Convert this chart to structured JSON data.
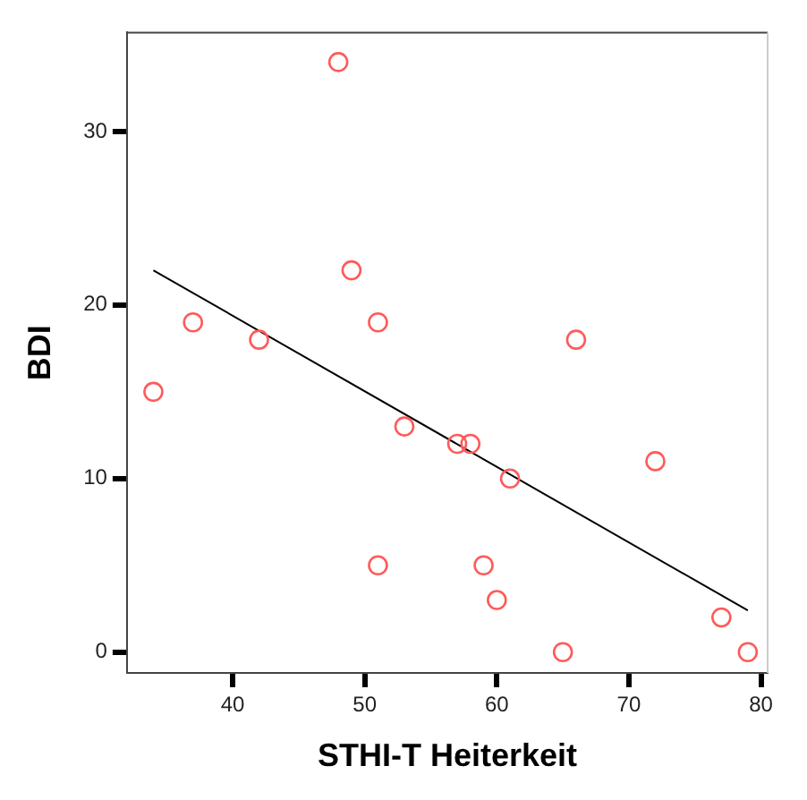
{
  "chart_data": {
    "type": "scatter",
    "xlabel": "STHI-T Heiterkeit",
    "ylabel": "BDI",
    "xlim": [
      32,
      80.5
    ],
    "ylim": [
      -1.2,
      35.7
    ],
    "xticks": [
      40,
      50,
      60,
      70,
      80
    ],
    "yticks": [
      0,
      10,
      20,
      30
    ],
    "grid": false,
    "legend": false,
    "series": [
      {
        "type": "scatter",
        "color": "#ff5a5a",
        "marker": "circle",
        "x": [
          34,
          37,
          42,
          48,
          49,
          51,
          51,
          53,
          57,
          58,
          61,
          59,
          60,
          66,
          65,
          72,
          77,
          79
        ],
        "values": [
          15,
          19,
          18,
          34,
          22,
          19,
          5,
          13,
          12,
          12,
          10,
          5,
          3,
          18,
          0,
          11,
          2,
          0
        ]
      },
      {
        "type": "line",
        "color": "#000000",
        "marker": "none",
        "line_style": "solid",
        "x": [
          34,
          79
        ],
        "values": [
          22,
          2.4
        ]
      }
    ]
  }
}
